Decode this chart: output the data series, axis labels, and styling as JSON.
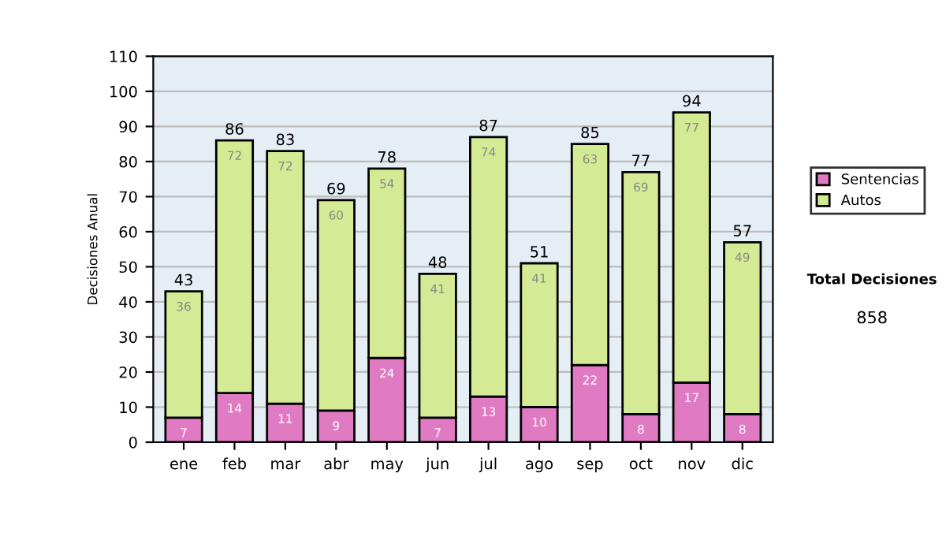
{
  "chart_data": {
    "type": "bar",
    "stacked": true,
    "ylabel": "Decisiones Anual",
    "categories": [
      "ene",
      "feb",
      "mar",
      "abr",
      "may",
      "jun",
      "jul",
      "ago",
      "sep",
      "oct",
      "nov",
      "dic"
    ],
    "series": [
      {
        "name": "Sentencias",
        "color": "#e07bc3",
        "values": [
          7,
          14,
          11,
          9,
          24,
          7,
          13,
          10,
          22,
          8,
          17,
          8
        ]
      },
      {
        "name": "Autos",
        "color": "#d5ea94",
        "values": [
          36,
          72,
          72,
          60,
          54,
          41,
          74,
          41,
          63,
          69,
          77,
          49
        ]
      }
    ],
    "totals": [
      "43",
      "86",
      "83",
      "69",
      "78",
      "48",
      "87",
      "51",
      "85",
      "77",
      "94",
      "57"
    ],
    "data_labels": true,
    "ylim": [
      0,
      110
    ],
    "yticks": [
      0,
      10,
      20,
      30,
      40,
      50,
      60,
      70,
      80,
      90,
      100,
      110
    ],
    "grid": "y",
    "legend": "right",
    "annotations": [
      "Total Decisiones",
      "858"
    ]
  }
}
